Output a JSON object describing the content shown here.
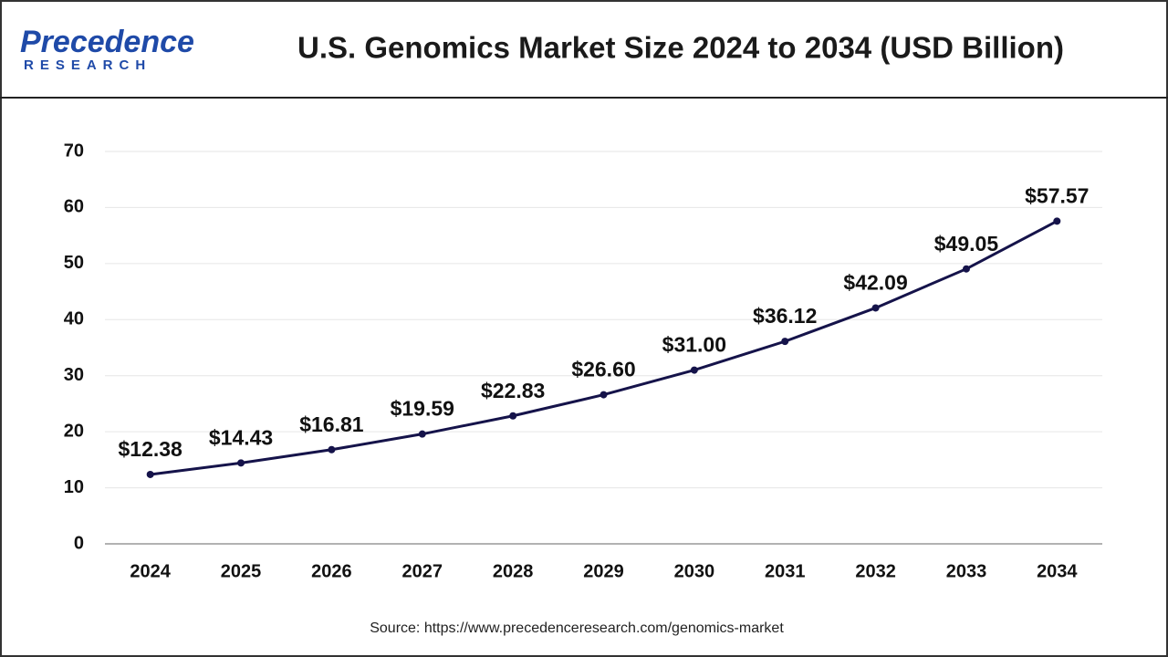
{
  "logo": {
    "name": "Precedence",
    "tagline": "RESEARCH"
  },
  "chart_data": {
    "type": "line",
    "title": "U.S. Genomics Market Size 2024 to 2034 (USD Billion)",
    "categories": [
      "2024",
      "2025",
      "2026",
      "2027",
      "2028",
      "2029",
      "2030",
      "2031",
      "2032",
      "2033",
      "2034"
    ],
    "values": [
      12.38,
      14.43,
      16.81,
      19.59,
      22.83,
      26.6,
      31.0,
      36.12,
      42.09,
      49.05,
      57.57
    ],
    "value_labels": [
      "$12.38",
      "$14.43",
      "$16.81",
      "$19.59",
      "$22.83",
      "$26.60",
      "$31.00",
      "$36.12",
      "$42.09",
      "$49.05",
      "$57.57"
    ],
    "color": "#15134a",
    "ylim": [
      0,
      70
    ],
    "yticks": [
      0,
      10,
      20,
      30,
      40,
      50,
      60,
      70
    ],
    "grid": true,
    "source": "Source: https://www.precedenceresearch.com/genomics-market"
  }
}
